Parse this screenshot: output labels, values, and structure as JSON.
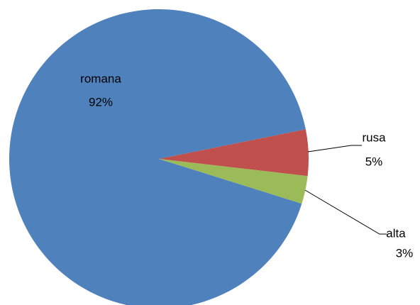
{
  "chart_data": {
    "type": "pie",
    "categories": [
      "romana",
      "rusa",
      "alta"
    ],
    "values": [
      92,
      5,
      3
    ],
    "value_labels": [
      "92%",
      "5%",
      "3%"
    ],
    "colors": [
      "#4f81bd",
      "#c0504d",
      "#9bbb59"
    ]
  }
}
